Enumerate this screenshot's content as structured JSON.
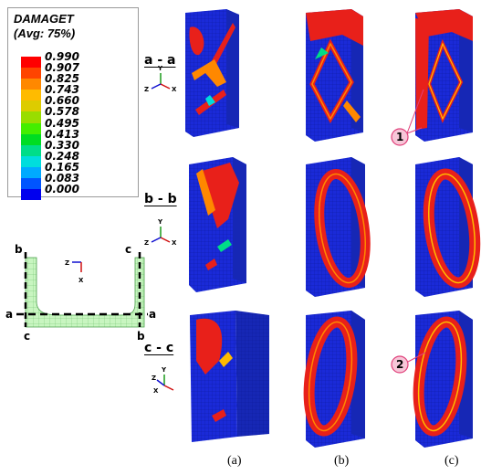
{
  "legend": {
    "title": "DAMAGET",
    "subtitle": "(Avg: 75%)",
    "entries": [
      {
        "value": "0.990",
        "color": "#ff0000"
      },
      {
        "value": "0.907",
        "color": "#ff4400"
      },
      {
        "value": "0.825",
        "color": "#ff8800"
      },
      {
        "value": "0.743",
        "color": "#ffbb00"
      },
      {
        "value": "0.660",
        "color": "#ddcc00"
      },
      {
        "value": "0.578",
        "color": "#99dd00"
      },
      {
        "value": "0.495",
        "color": "#44ee00"
      },
      {
        "value": "0.413",
        "color": "#00dd22"
      },
      {
        "value": "0.330",
        "color": "#00dd88"
      },
      {
        "value": "0.248",
        "color": "#00dddd"
      },
      {
        "value": "0.165",
        "color": "#00aaff"
      },
      {
        "value": "0.083",
        "color": "#0055ff"
      },
      {
        "value": "0.000",
        "color": "#0000ee"
      }
    ]
  },
  "sections": [
    {
      "label": "a - a"
    },
    {
      "label": "b - b"
    },
    {
      "label": "c - c"
    }
  ],
  "axes": {
    "y": "Y",
    "z": "Z",
    "x": "X"
  },
  "cross_section": {
    "corner_labels": {
      "b_left": "b",
      "c_right": "c",
      "a_left": "a",
      "a_right": "a",
      "c_left": "c",
      "b_right": "b"
    },
    "axis_z": "Z",
    "axis_x": "X"
  },
  "callouts": [
    "1",
    "2"
  ],
  "columns": [
    "(a)",
    "(b)",
    "(c)"
  ],
  "colors": {
    "mesh_blue": "#1a2ad8",
    "damage_red": "#e8201a",
    "mesh_green": "#b9f2b0",
    "callout_pink": "#e0407a"
  }
}
